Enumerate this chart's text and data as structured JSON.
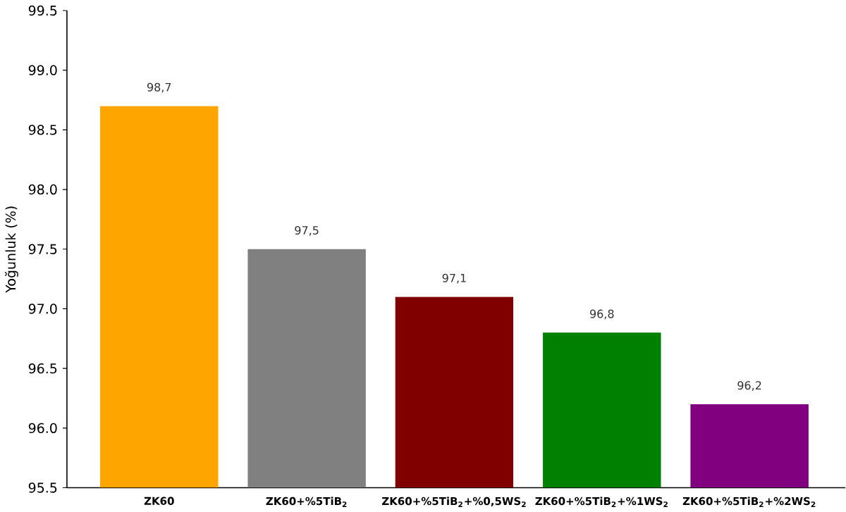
{
  "chart_data": {
    "type": "bar",
    "ylabel": "Yoğunluk (%)",
    "categories": [
      "ZK60",
      "ZK60+%5TiB$_{2}$",
      "ZK60+%5TiB$_{2}$+%0,5WS$_{2}$",
      "ZK60+%5TiB$_{2}$+%1WS$_{2}$",
      "ZK60+%5TiB$_{2}$+%2WS$_{2}$"
    ],
    "values": [
      98.7,
      97.5,
      97.1,
      96.8,
      96.2
    ],
    "value_labels": [
      "98,7",
      "97,5",
      "97,1",
      "96,8",
      "96,2"
    ],
    "colors": [
      "#ffa500",
      "#808080",
      "#800000",
      "#008000",
      "#800080"
    ],
    "ylim": [
      95.5,
      99.5
    ],
    "yticks": [
      95.5,
      {
        "value": 96,
        "label": "96.0"
      },
      96.5,
      {
        "value": 97,
        "label": "97.0"
      },
      97.5,
      {
        "value": 98,
        "label": "98.0"
      },
      98.5,
      {
        "value": 99,
        "label": "99.0"
      },
      99.5
    ],
    "grid": false
  }
}
